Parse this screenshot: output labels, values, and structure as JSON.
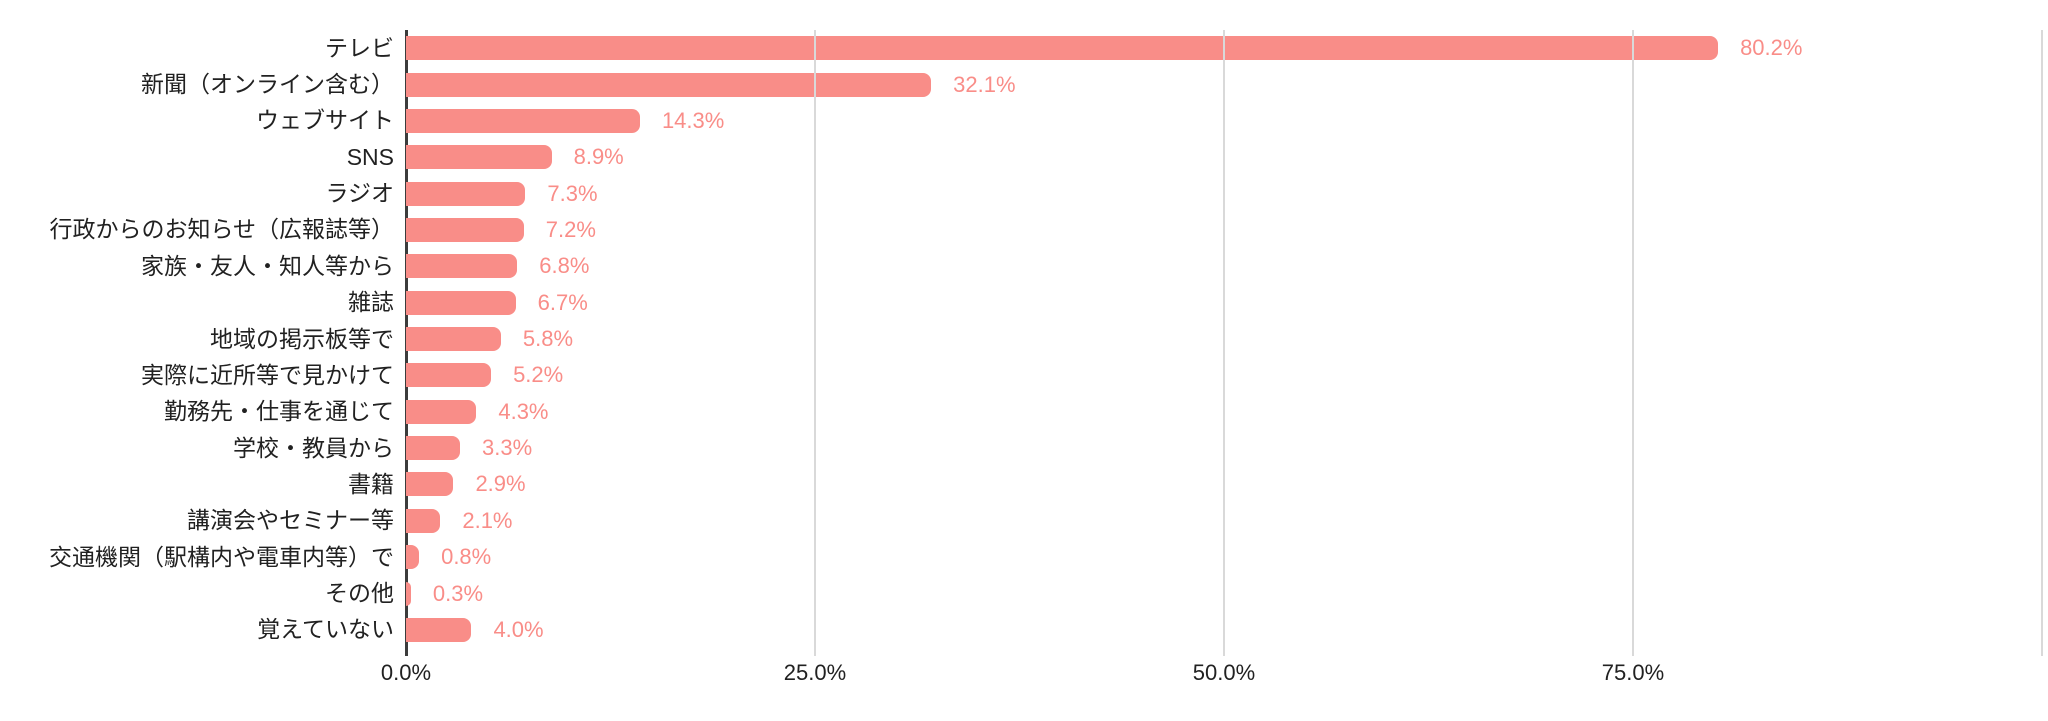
{
  "chart_data": {
    "type": "bar",
    "orientation": "horizontal",
    "title": "",
    "xlabel": "",
    "ylabel": "",
    "categories": [
      "テレビ",
      "新聞（オンライン含む）",
      "ウェブサイト",
      "SNS",
      "ラジオ",
      "行政からのお知らせ（広報誌等）",
      "家族・友人・知人等から",
      "雑誌",
      "地域の掲示板等で",
      "実際に近所等で見かけて",
      "勤務先・仕事を通じて",
      "学校・教員から",
      "書籍",
      "講演会やセミナー等",
      "交通機関（駅構内や電車内等）で",
      "その他",
      "覚えていない"
    ],
    "values": [
      80.2,
      32.1,
      14.3,
      8.9,
      7.3,
      7.2,
      6.8,
      6.7,
      5.8,
      5.2,
      4.3,
      3.3,
      2.9,
      2.1,
      0.8,
      0.3,
      4.0
    ],
    "value_labels": [
      "80.2%",
      "32.1%",
      "14.3%",
      "8.9%",
      "7.3%",
      "7.2%",
      "6.8%",
      "6.7%",
      "5.8%",
      "5.2%",
      "4.3%",
      "3.3%",
      "2.9%",
      "2.1%",
      "0.8%",
      "0.3%",
      "4.0%"
    ],
    "xlim": [
      0,
      100
    ],
    "x_ticks": [
      "0.0%",
      "25.0%",
      "50.0%",
      "75.0%"
    ],
    "x_tick_values": [
      0,
      25,
      50,
      75
    ],
    "grid": true,
    "legend": "none",
    "bar_color": "#f98d88",
    "value_label_color": "#f98d88",
    "axis_text_color": "#212121",
    "gridline_color": "#d9d9d9",
    "axis_line_color": "#3c3c3c",
    "background_color": "#ffffff"
  }
}
